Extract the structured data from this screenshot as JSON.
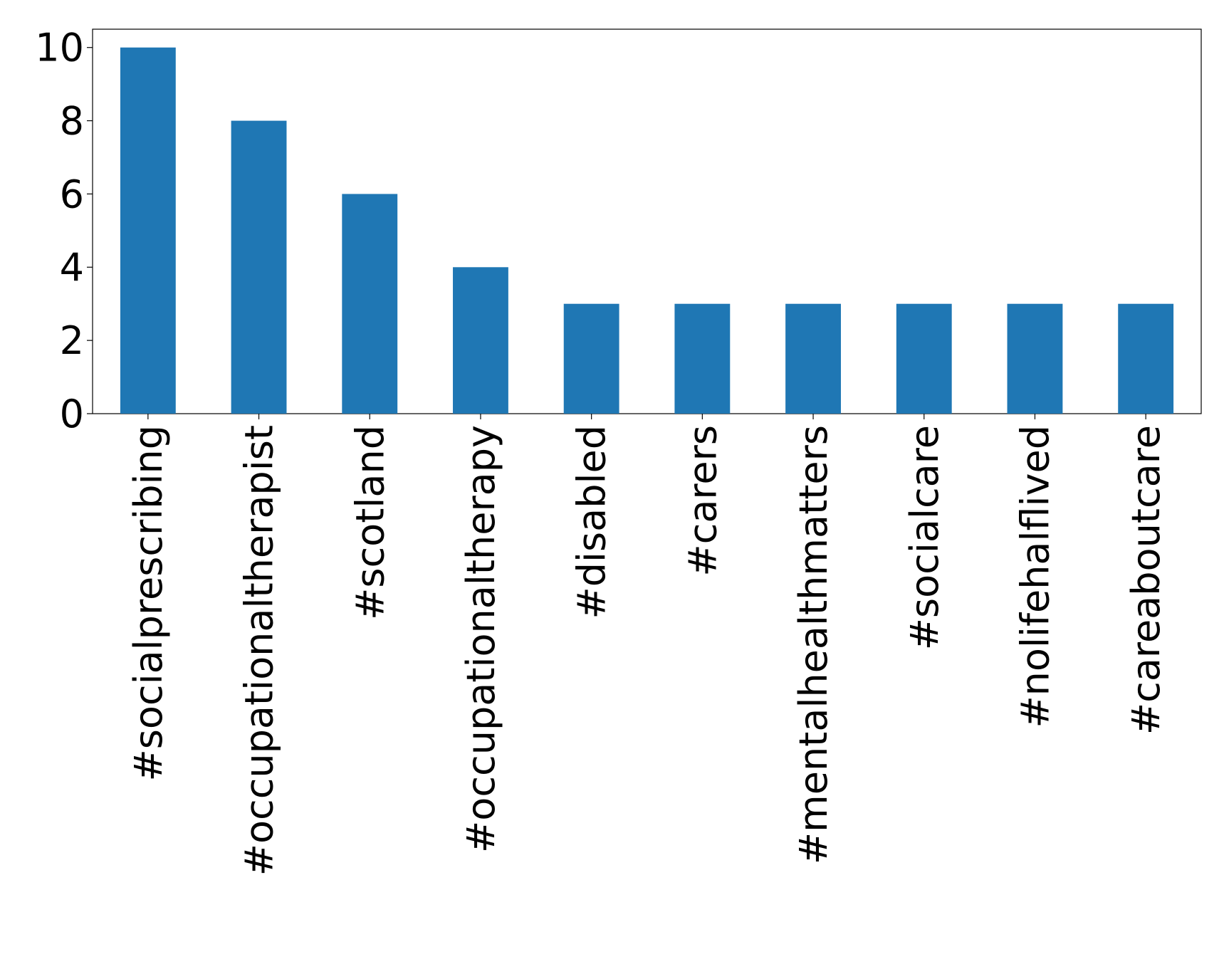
{
  "chart_data": {
    "type": "bar",
    "categories": [
      "#socialprescribing",
      "#occupationaltherapist",
      "#scotland",
      "#occupationaltherapy",
      "#disabled",
      "#carers",
      "#mentalhealthmatters",
      "#socialcare",
      "#nolifehalflived",
      "#careaboutcare"
    ],
    "values": [
      10,
      8,
      6,
      4,
      3,
      3,
      3,
      3,
      3,
      3
    ],
    "color": "#1f77b4",
    "ylim": [
      0,
      10.5
    ],
    "yticks": [
      0,
      2,
      4,
      6,
      8,
      10
    ],
    "grid": false
  }
}
